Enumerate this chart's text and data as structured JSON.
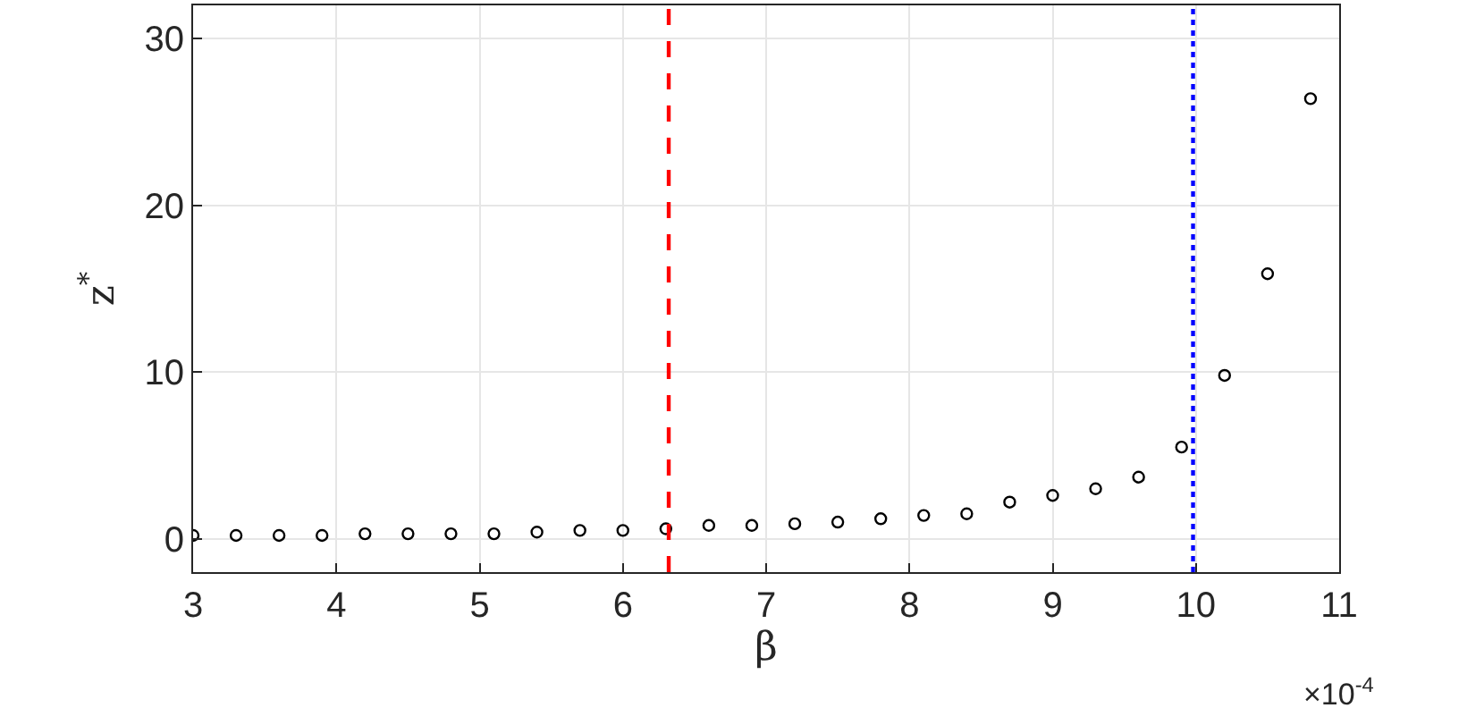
{
  "chart_data": {
    "type": "scatter",
    "xlabel": "β",
    "ylabel": "z$^{*}$",
    "x": [
      3.0,
      3.3,
      3.6,
      3.9,
      4.2,
      4.5,
      4.8,
      5.1,
      5.4,
      5.7,
      6.0,
      6.3,
      6.6,
      6.9,
      7.2,
      7.5,
      7.8,
      8.1,
      8.4,
      8.7,
      9.0,
      9.3,
      9.6,
      9.9,
      10.2,
      10.5,
      10.8
    ],
    "series": [
      {
        "color": "#000000",
        "values": [
          0.2,
          0.2,
          0.2,
          0.2,
          0.3,
          0.3,
          0.3,
          0.3,
          0.4,
          0.5,
          0.5,
          0.6,
          0.8,
          0.8,
          0.9,
          1.0,
          1.2,
          1.4,
          1.5,
          2.2,
          2.6,
          3.0,
          3.7,
          5.5,
          9.8,
          15.9,
          26.4
        ]
      }
    ],
    "marker": "circle",
    "grid": true,
    "xlim": [
      3,
      11
    ],
    "xticks": [
      3,
      4,
      5,
      6,
      7,
      8,
      9,
      10,
      11
    ],
    "ylim": [
      -2,
      32
    ],
    "yticks": [
      0,
      10,
      20,
      30
    ],
    "ref_lines": [
      {
        "axis": "x",
        "value": 6.32,
        "color": "#ff0000",
        "line_style": "dashed"
      },
      {
        "axis": "x",
        "value": 9.98,
        "color": "#0000ff",
        "line_style": "dotted"
      }
    ],
    "annotations": [
      "×10$^{-4}$"
    ]
  }
}
